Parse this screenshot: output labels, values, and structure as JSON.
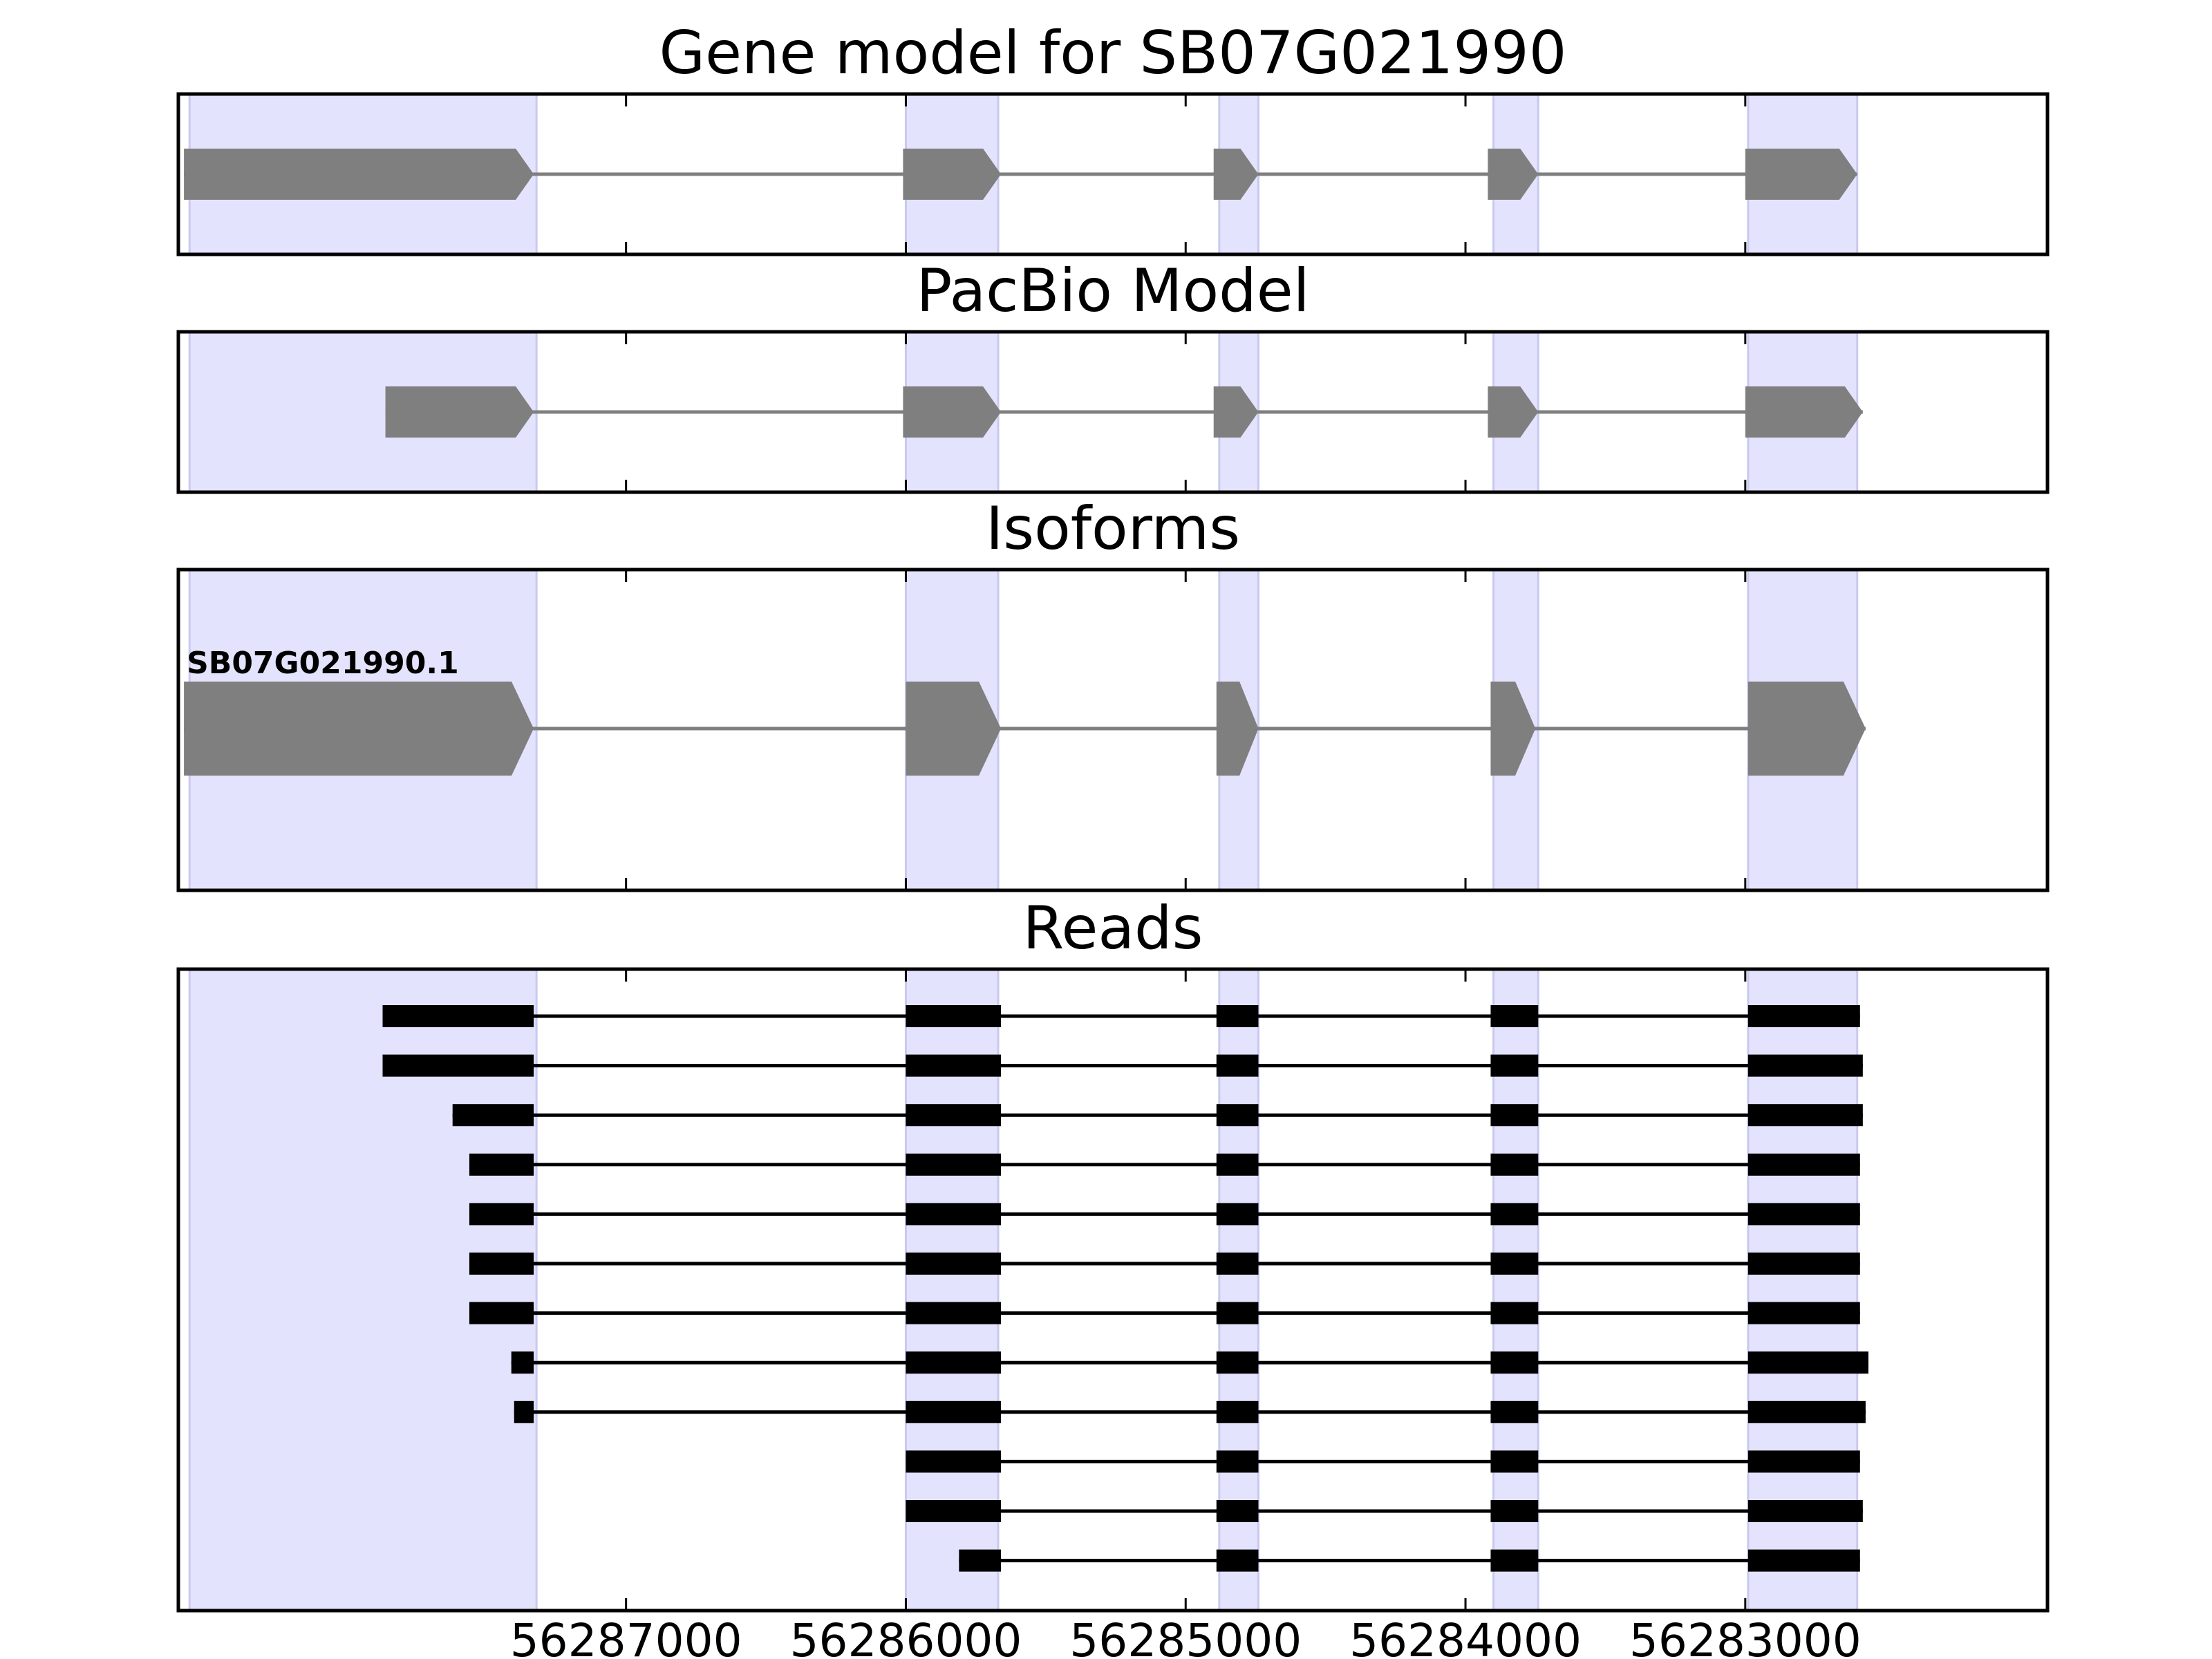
{
  "chart_data": {
    "type": "gene-structure",
    "x_reversed": true,
    "xlim": [
      56288600,
      56281920
    ],
    "xticks": [
      56287000,
      56286000,
      56285000,
      56284000,
      56283000
    ],
    "xtick_labels": [
      "56287000",
      "56286000",
      "56285000",
      "56284000",
      "56283000"
    ],
    "exon_regions": [
      [
        56288560,
        56287320
      ],
      [
        56286000,
        56285670
      ],
      [
        56284880,
        56284740
      ],
      [
        56283900,
        56283740
      ],
      [
        56282990,
        56282600
      ]
    ],
    "colors": {
      "exon_fill": "#7f7f7f",
      "region_fill": "#e3e3fd",
      "region_edge": "#c9c9f0",
      "read": "#000000",
      "frame": "#000000"
    },
    "panels": [
      {
        "title": "Gene model for SB07G021990",
        "kind": "gene",
        "rows": [
          {
            "label": "",
            "exons": [
              [
                56288580,
                56287330
              ],
              [
                56286010,
                56285660
              ],
              [
                56284900,
                56284740
              ],
              [
                56283920,
                56283740
              ],
              [
                56283000,
                56282600
              ]
            ]
          }
        ]
      },
      {
        "title": "PacBio Model",
        "kind": "gene",
        "rows": [
          {
            "label": "",
            "exons": [
              [
                56287860,
                56287330
              ],
              [
                56286010,
                56285660
              ],
              [
                56284900,
                56284740
              ],
              [
                56283920,
                56283740
              ],
              [
                56283000,
                56282580
              ]
            ]
          }
        ]
      },
      {
        "title": "Isoforms",
        "kind": "gene",
        "rows": [
          {
            "label": "SB07G021990.1",
            "exons": [
              [
                56288580,
                56287330
              ],
              [
                56286000,
                56285660
              ],
              [
                56284890,
                56284740
              ],
              [
                56283910,
                56283750
              ],
              [
                56282990,
                56282570
              ]
            ]
          }
        ]
      },
      {
        "title": "Reads",
        "kind": "reads",
        "rows": [
          {
            "exons": [
              [
                56287870,
                56287330
              ],
              [
                56286000,
                56285660
              ],
              [
                56284890,
                56284740
              ],
              [
                56283910,
                56283740
              ],
              [
                56282990,
                56282590
              ]
            ]
          },
          {
            "exons": [
              [
                56287870,
                56287330
              ],
              [
                56286000,
                56285660
              ],
              [
                56284890,
                56284740
              ],
              [
                56283910,
                56283740
              ],
              [
                56282990,
                56282580
              ]
            ]
          },
          {
            "exons": [
              [
                56287620,
                56287330
              ],
              [
                56286000,
                56285660
              ],
              [
                56284890,
                56284740
              ],
              [
                56283910,
                56283740
              ],
              [
                56282990,
                56282580
              ]
            ]
          },
          {
            "exons": [
              [
                56287560,
                56287330
              ],
              [
                56286000,
                56285660
              ],
              [
                56284890,
                56284740
              ],
              [
                56283910,
                56283740
              ],
              [
                56282990,
                56282590
              ]
            ]
          },
          {
            "exons": [
              [
                56287560,
                56287330
              ],
              [
                56286000,
                56285660
              ],
              [
                56284890,
                56284740
              ],
              [
                56283910,
                56283740
              ],
              [
                56282990,
                56282590
              ]
            ]
          },
          {
            "exons": [
              [
                56287560,
                56287330
              ],
              [
                56286000,
                56285660
              ],
              [
                56284890,
                56284740
              ],
              [
                56283910,
                56283740
              ],
              [
                56282990,
                56282590
              ]
            ]
          },
          {
            "exons": [
              [
                56287560,
                56287330
              ],
              [
                56286000,
                56285660
              ],
              [
                56284890,
                56284740
              ],
              [
                56283910,
                56283740
              ],
              [
                56282990,
                56282590
              ]
            ]
          },
          {
            "exons": [
              [
                56287410,
                56287330
              ],
              [
                56286000,
                56285660
              ],
              [
                56284890,
                56284740
              ],
              [
                56283910,
                56283740
              ],
              [
                56282990,
                56282560
              ]
            ]
          },
          {
            "exons": [
              [
                56287400,
                56287330
              ],
              [
                56286000,
                56285660
              ],
              [
                56284890,
                56284740
              ],
              [
                56283910,
                56283740
              ],
              [
                56282990,
                56282570
              ]
            ]
          },
          {
            "exons": [
              [
                56286000,
                56285660
              ],
              [
                56284890,
                56284740
              ],
              [
                56283910,
                56283740
              ],
              [
                56282990,
                56282590
              ]
            ]
          },
          {
            "exons": [
              [
                56286000,
                56285660
              ],
              [
                56284890,
                56284740
              ],
              [
                56283910,
                56283740
              ],
              [
                56282990,
                56282580
              ]
            ]
          },
          {
            "exons": [
              [
                56285810,
                56285660
              ],
              [
                56284890,
                56284740
              ],
              [
                56283910,
                56283740
              ],
              [
                56282990,
                56282590
              ]
            ]
          }
        ]
      }
    ]
  }
}
